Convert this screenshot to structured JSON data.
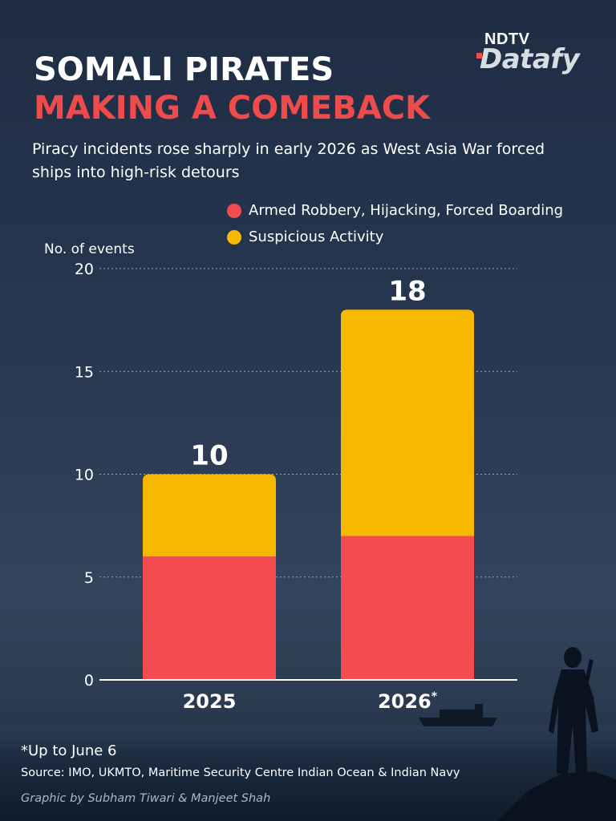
{
  "brand": {
    "ndtv": "NDTV",
    "datafy": "Datafy"
  },
  "title": {
    "line1": "SOMALI PIRATES",
    "line2": "MAKING A COMEBACK"
  },
  "subtitle": "Piracy incidents rose sharply in early 2026 as West Asia War forced ships into high-risk detours",
  "colors": {
    "armed": "#f24c4f",
    "suspicious": "#f6b900",
    "accent_title": "#f04b4b"
  },
  "chart_data": {
    "type": "bar",
    "stacked": true,
    "ylabel": "No. of events",
    "ylim": [
      0,
      20
    ],
    "yticks": [
      0,
      5,
      10,
      15,
      20
    ],
    "grid": true,
    "legend_position": "top-right",
    "categories": [
      "2025",
      "2026"
    ],
    "category_marks": [
      "",
      "*"
    ],
    "series": [
      {
        "name": "Armed Robbery, Hijacking, Forced Boarding",
        "values": [
          6,
          7
        ],
        "color": "#f24c4f"
      },
      {
        "name": "Suspicious Activity",
        "values": [
          4,
          11
        ],
        "color": "#f6b900"
      }
    ],
    "totals": [
      10,
      18
    ]
  },
  "footnote": "*Up to June 6",
  "source": "Source: IMO, UKMTO, Maritime Security Centre Indian Ocean & Indian Navy",
  "credit": "Graphic by Subham Tiwari & Manjeet Shah"
}
